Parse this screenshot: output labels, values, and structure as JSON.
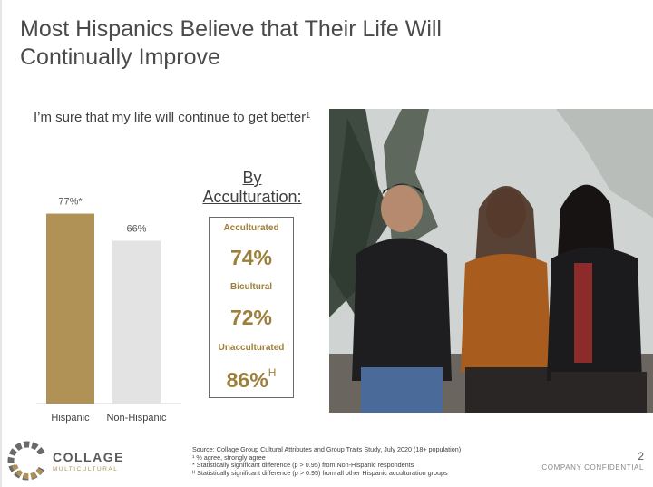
{
  "slide": {
    "title_line1": "Most Hispanics Believe that Their Life Will",
    "title_line2": "Continually Improve",
    "question": "I’m sure that my life will continue to get better",
    "question_footnote_mark": "1",
    "page_number": "2",
    "confidential": "COMPANY CONFIDENTIAL"
  },
  "chart_data": {
    "type": "bar",
    "categories": [
      "Hispanic",
      "Non-Hispanic"
    ],
    "values": [
      77,
      66
    ],
    "value_labels": [
      "77%*",
      "66%"
    ],
    "colors": [
      "#b09257",
      "#e3e3e3"
    ],
    "ylim": [
      0,
      100
    ],
    "xlabel": "",
    "ylabel": ""
  },
  "acculturation": {
    "heading_line1": "By",
    "heading_line2": "Acculturation:",
    "groups": [
      {
        "label": "Acculturated",
        "value": "74%",
        "mark": ""
      },
      {
        "label": "Bicultural",
        "value": "72%",
        "mark": ""
      },
      {
        "label": "Unacculturated",
        "value": "86%",
        "mark": "H"
      }
    ],
    "accent_color": "#9c7f3a"
  },
  "photo": {
    "icon": "photo-image"
  },
  "logo": {
    "word": "COLLAGE",
    "sub": "MULTICULTURAL"
  },
  "sources": {
    "line1": "Source: Collage Group Cultural Attributes and Group Traits Study, July 2020 (18+ population)",
    "line2": "¹ % agree, strongly agree",
    "line3": "* Statistically significant difference (p > 0.95) from Non-Hispanic respondents",
    "line4": "ᴴ Statistically significant difference (p > 0.95) from all other Hispanic acculturation groups"
  }
}
